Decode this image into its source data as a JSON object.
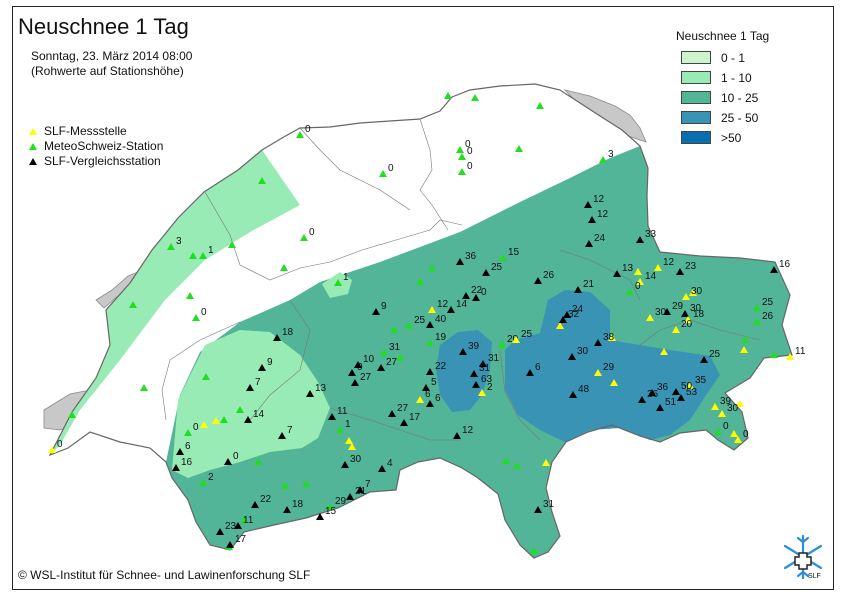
{
  "title": "Neuschnee 1 Tag",
  "date": "Sonntag, 23. März 2014 08:00",
  "note": "(Rohwerte auf Stationshöhe)",
  "legend": {
    "title": "Neuschnee 1 Tag",
    "classes": [
      {
        "label": "0 - 1",
        "color": "#ccf5cc"
      },
      {
        "label": "1 - 10",
        "color": "#99ebb5"
      },
      {
        "label": "10 - 25",
        "color": "#52b597"
      },
      {
        "label": "25 - 50",
        "color": "#3993b5"
      },
      {
        "label": ">50",
        "color": "#0a6fae"
      }
    ]
  },
  "station_legend": [
    {
      "label": "SLF-Messstelle",
      "color": "#ffff00"
    },
    {
      "label": "MeteoSchweiz-Station",
      "color": "#22dd22"
    },
    {
      "label": "SLF-Vergleichsstation",
      "color": "#000000"
    }
  ],
  "colors": {
    "lake": "#c8c8c8",
    "border": "#777777"
  },
  "labels": [
    "0",
    "0",
    "0",
    "0",
    "3",
    "12",
    "12",
    "33",
    "24",
    "13",
    "14",
    "12",
    "23",
    "16",
    "0",
    "30",
    "25",
    "26",
    "30",
    "29",
    "18",
    "20",
    "30",
    "25",
    "35",
    "50",
    "53",
    "39",
    "30",
    "0",
    "0",
    "0",
    "21",
    "32",
    "24",
    "38",
    "30",
    "29",
    "36",
    "26",
    "51",
    "48",
    "6",
    "2",
    "63",
    "31",
    "31",
    "39",
    "20",
    "25",
    "36",
    "15",
    "25",
    "26",
    "22",
    "0",
    "12",
    "14",
    "40",
    "19",
    "25",
    "9",
    "18",
    "1",
    "31",
    "27",
    "10",
    "0",
    "27",
    "22",
    "5",
    "6",
    "6",
    "27",
    "17",
    "1",
    "11",
    "13",
    "9",
    "7",
    "14",
    "7",
    "0",
    "0",
    "2",
    "6",
    "16",
    "30",
    "4",
    "7",
    "21",
    "29",
    "15",
    "18",
    "22",
    "23",
    "11",
    "17",
    "12",
    "31",
    "0",
    "0",
    "3",
    "1",
    "0",
    "11"
  ],
  "copyright": "© WSL-Institut für Schnee- und Lawinenforschung SLF",
  "logo_text": "SLF"
}
